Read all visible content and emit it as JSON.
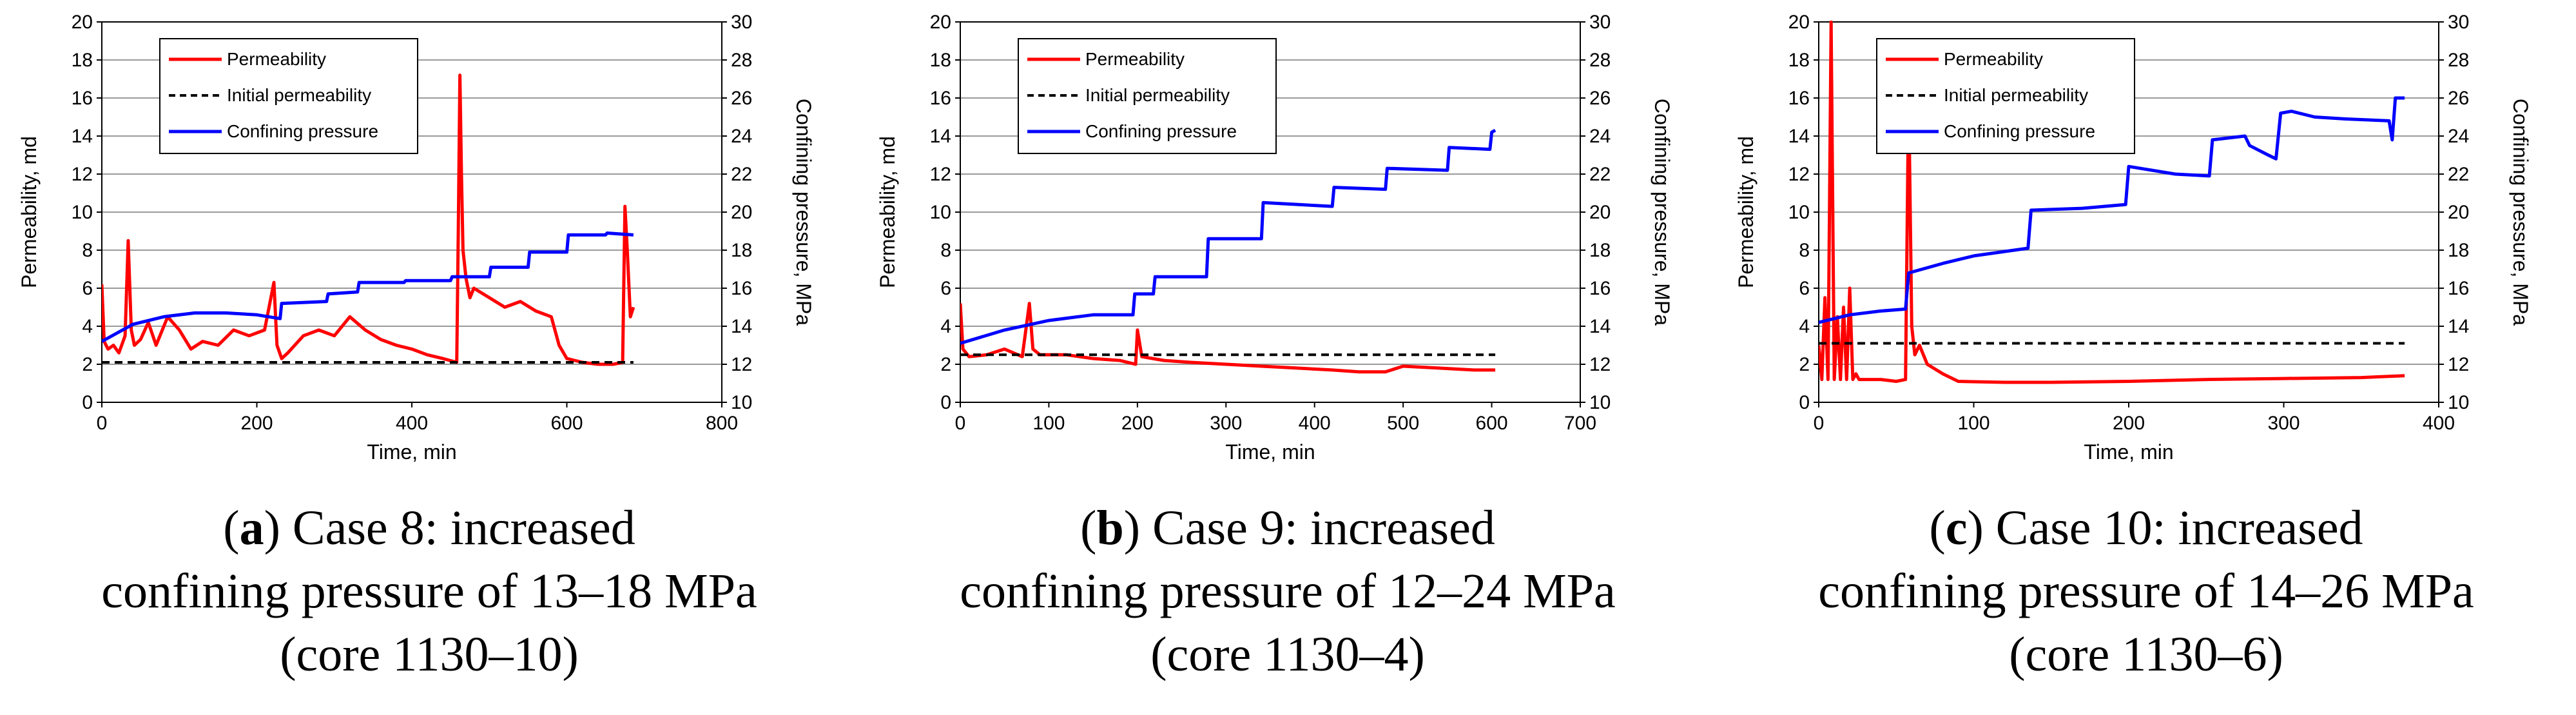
{
  "chart_data": [
    {
      "type": "line",
      "panel_letter": "a",
      "caption_text": " Case 8: increased",
      "caption_line2": "confining pressure of 13–18 MPa",
      "caption_line3": "(core 1130–10)",
      "xlabel": "Time, min",
      "ylabel": "Permeability, md",
      "y2label": "Confining pressure, MPa",
      "xlim": [
        0,
        800
      ],
      "xticks": [
        0,
        200,
        400,
        600,
        800
      ],
      "ylim": [
        0,
        20
      ],
      "yticks": [
        0,
        2,
        4,
        6,
        8,
        10,
        12,
        14,
        16,
        18,
        20
      ],
      "y2lim": [
        10,
        30
      ],
      "y2ticks": [
        10,
        12,
        14,
        16,
        18,
        20,
        22,
        24,
        26,
        28,
        30
      ],
      "grid": true,
      "legend_position": "top-left",
      "series": [
        {
          "name": "Permeability",
          "axis": "left",
          "color": "#ff0000",
          "style": "solid",
          "x": [
            0,
            3,
            8,
            15,
            22,
            30,
            34,
            38,
            42,
            50,
            60,
            70,
            85,
            100,
            115,
            130,
            150,
            170,
            190,
            210,
            222,
            226,
            232,
            240,
            260,
            280,
            300,
            320,
            340,
            360,
            380,
            400,
            420,
            440,
            458,
            460,
            462,
            464,
            466,
            470,
            475,
            480,
            500,
            520,
            540,
            560,
            580,
            590,
            600,
            620,
            640,
            660,
            672,
            675,
            678,
            682,
            686
          ],
          "y": [
            6.2,
            3.2,
            2.8,
            3.0,
            2.6,
            3.5,
            8.5,
            3.8,
            3.0,
            3.3,
            4.2,
            3.0,
            4.5,
            3.8,
            2.8,
            3.2,
            3.0,
            3.8,
            3.5,
            3.8,
            6.3,
            3.0,
            2.3,
            2.6,
            3.5,
            3.8,
            3.5,
            4.5,
            3.8,
            3.3,
            3.0,
            2.8,
            2.5,
            2.3,
            2.1,
            9.0,
            17.2,
            12.0,
            8.0,
            6.5,
            5.5,
            6.0,
            5.5,
            5.0,
            5.3,
            4.8,
            4.5,
            3.0,
            2.3,
            2.1,
            2.0,
            2.0,
            2.1,
            10.3,
            8.0,
            4.5,
            5.0
          ]
        },
        {
          "name": "Initial permeability",
          "axis": "left",
          "color": "#000000",
          "style": "dashed",
          "x": [
            0,
            686
          ],
          "y": [
            2.1,
            2.1
          ]
        },
        {
          "name": "Confining pressure",
          "axis": "right",
          "color": "#0000ff",
          "style": "solid",
          "x": [
            0,
            40,
            80,
            120,
            160,
            200,
            230,
            232,
            290,
            292,
            330,
            332,
            390,
            392,
            450,
            452,
            500,
            502,
            550,
            552,
            600,
            602,
            650,
            652,
            686
          ],
          "y": [
            13.2,
            14.1,
            14.5,
            14.7,
            14.7,
            14.6,
            14.4,
            15.2,
            15.3,
            15.7,
            15.8,
            16.3,
            16.3,
            16.4,
            16.4,
            16.6,
            16.6,
            17.1,
            17.1,
            17.9,
            17.9,
            18.8,
            18.8,
            18.9,
            18.8
          ]
        }
      ]
    },
    {
      "type": "line",
      "panel_letter": "b",
      "caption_text": " Case 9: increased",
      "caption_line2": "confining pressure of 12–24 MPa",
      "caption_line3": "(core 1130–4)",
      "xlabel": "Time, min",
      "ylabel": "Permeability, md",
      "y2label": "Confining pressure, MPa",
      "xlim": [
        0,
        700
      ],
      "xticks": [
        0,
        100,
        200,
        300,
        400,
        500,
        600,
        700
      ],
      "ylim": [
        0,
        20
      ],
      "yticks": [
        0,
        2,
        4,
        6,
        8,
        10,
        12,
        14,
        16,
        18,
        20
      ],
      "y2lim": [
        10,
        30
      ],
      "y2ticks": [
        10,
        12,
        14,
        16,
        18,
        20,
        22,
        24,
        26,
        28,
        30
      ],
      "grid": true,
      "legend_position": "top-left",
      "series": [
        {
          "name": "Permeability",
          "axis": "left",
          "color": "#ff0000",
          "style": "solid",
          "x": [
            0,
            3,
            10,
            30,
            50,
            70,
            78,
            82,
            90,
            120,
            150,
            180,
            198,
            200,
            205,
            230,
            260,
            300,
            340,
            380,
            420,
            450,
            480,
            500,
            540,
            580,
            604
          ],
          "y": [
            5.2,
            2.8,
            2.4,
            2.5,
            2.8,
            2.4,
            5.2,
            2.8,
            2.5,
            2.5,
            2.3,
            2.2,
            2.0,
            3.8,
            2.4,
            2.2,
            2.1,
            2.0,
            1.9,
            1.8,
            1.7,
            1.6,
            1.6,
            1.9,
            1.8,
            1.7,
            1.7
          ]
        },
        {
          "name": "Initial permeability",
          "axis": "left",
          "color": "#000000",
          "style": "dashed",
          "x": [
            0,
            604
          ],
          "y": [
            2.5,
            2.5
          ]
        },
        {
          "name": "Confining pressure",
          "axis": "right",
          "color": "#0000ff",
          "style": "solid",
          "x": [
            0,
            50,
            100,
            150,
            195,
            197,
            218,
            220,
            278,
            280,
            340,
            342,
            420,
            422,
            480,
            482,
            550,
            552,
            598,
            600,
            604
          ],
          "y": [
            13.1,
            13.8,
            14.3,
            14.6,
            14.6,
            15.7,
            15.7,
            16.6,
            16.6,
            18.6,
            18.6,
            20.5,
            20.3,
            21.3,
            21.2,
            22.3,
            22.2,
            23.4,
            23.3,
            24.2,
            24.3
          ]
        }
      ]
    },
    {
      "type": "line",
      "panel_letter": "c",
      "caption_text": " Case 10: increased",
      "caption_line2": "confining pressure of 14–26 MPa",
      "caption_line3": "(core 1130–6)",
      "xlabel": "Time, min",
      "ylabel": "Permeability, md",
      "y2label": "Confining pressure, MPa",
      "xlim": [
        0,
        400
      ],
      "xticks": [
        0,
        100,
        200,
        300,
        400
      ],
      "ylim": [
        0,
        20
      ],
      "yticks": [
        0,
        2,
        4,
        6,
        8,
        10,
        12,
        14,
        16,
        18,
        20
      ],
      "y2lim": [
        10,
        30
      ],
      "y2ticks": [
        10,
        12,
        14,
        16,
        18,
        20,
        22,
        24,
        26,
        28,
        30
      ],
      "grid": true,
      "legend_position": "top-left",
      "series": [
        {
          "name": "Permeability",
          "axis": "left",
          "color": "#ff0000",
          "style": "solid",
          "x": [
            0,
            2,
            4,
            6,
            8,
            10,
            12,
            14,
            16,
            18,
            20,
            22,
            24,
            26,
            30,
            40,
            50,
            56,
            58,
            60,
            62,
            65,
            70,
            80,
            90,
            120,
            150,
            200,
            250,
            300,
            350,
            378
          ],
          "y": [
            3.0,
            1.2,
            5.5,
            1.2,
            20.0,
            1.2,
            4.5,
            1.2,
            5.0,
            1.2,
            6.0,
            1.2,
            1.5,
            1.2,
            1.2,
            1.2,
            1.1,
            1.2,
            16.5,
            4.0,
            2.5,
            3.0,
            2.0,
            1.5,
            1.1,
            1.05,
            1.05,
            1.1,
            1.2,
            1.25,
            1.3,
            1.4
          ]
        },
        {
          "name": "Initial permeability",
          "axis": "left",
          "color": "#000000",
          "style": "dashed",
          "x": [
            0,
            378
          ],
          "y": [
            3.1,
            3.1
          ]
        },
        {
          "name": "Confining pressure",
          "axis": "right",
          "color": "#0000ff",
          "style": "solid",
          "x": [
            0,
            20,
            40,
            56,
            58,
            80,
            100,
            135,
            137,
            170,
            198,
            200,
            230,
            252,
            254,
            275,
            278,
            290,
            295,
            298,
            305,
            320,
            340,
            368,
            370,
            372,
            378
          ],
          "y": [
            14.2,
            14.6,
            14.8,
            14.9,
            16.8,
            17.3,
            17.7,
            18.1,
            20.1,
            20.2,
            20.4,
            22.4,
            22.0,
            21.9,
            23.8,
            24.0,
            23.5,
            23.0,
            22.8,
            25.2,
            25.3,
            25.0,
            24.9,
            24.8,
            23.8,
            26.0,
            26.0
          ]
        }
      ]
    }
  ]
}
